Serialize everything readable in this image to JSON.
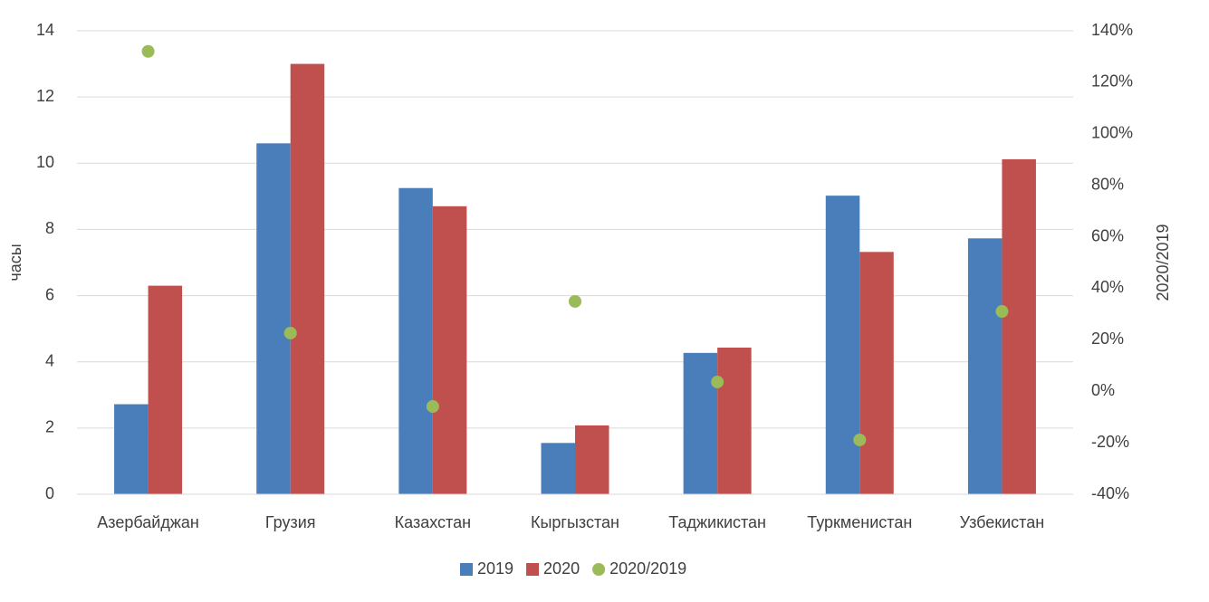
{
  "chart_data": {
    "type": "bar",
    "categories": [
      "Азербайджан",
      "Грузия",
      "Казахстан",
      "Кыргызстан",
      "Таджикистан",
      "Туркменистан",
      "Узбекистан"
    ],
    "series": [
      {
        "name": "2019",
        "type": "bar",
        "color": "#4a7ebb",
        "values": [
          2.72,
          10.6,
          9.25,
          1.55,
          4.27,
          9.02,
          7.73
        ]
      },
      {
        "name": "2020",
        "type": "bar",
        "color": "#c0504d",
        "values": [
          6.3,
          13.0,
          8.7,
          2.08,
          4.43,
          7.32,
          10.12
        ]
      },
      {
        "name": "2020/2019",
        "type": "scatter",
        "axis": "y2",
        "color": "#9bbb59",
        "values": [
          132,
          22.6,
          -5.9,
          34.9,
          3.6,
          -18.9,
          31.0
        ]
      }
    ],
    "ylabel": "часы",
    "y2label": "2020/2019",
    "ylim": [
      0,
      14
    ],
    "yticks": [
      0,
      2,
      4,
      6,
      8,
      10,
      12,
      14
    ],
    "y2lim": [
      -40,
      140
    ],
    "y2ticks": [
      {
        "value": -40,
        "label": "-40%"
      },
      {
        "value": -20,
        "label": "-20%"
      },
      {
        "value": 0,
        "label": "0%"
      },
      {
        "value": 20,
        "label": "20%"
      },
      {
        "value": 40,
        "label": "40%"
      },
      {
        "value": 60,
        "label": "60%"
      },
      {
        "value": 80,
        "label": "80%"
      },
      {
        "value": 100,
        "label": "100%"
      },
      {
        "value": 120,
        "label": "120%"
      },
      {
        "value": 140,
        "label": "140%"
      }
    ],
    "grid": true,
    "legend": "bottom"
  }
}
